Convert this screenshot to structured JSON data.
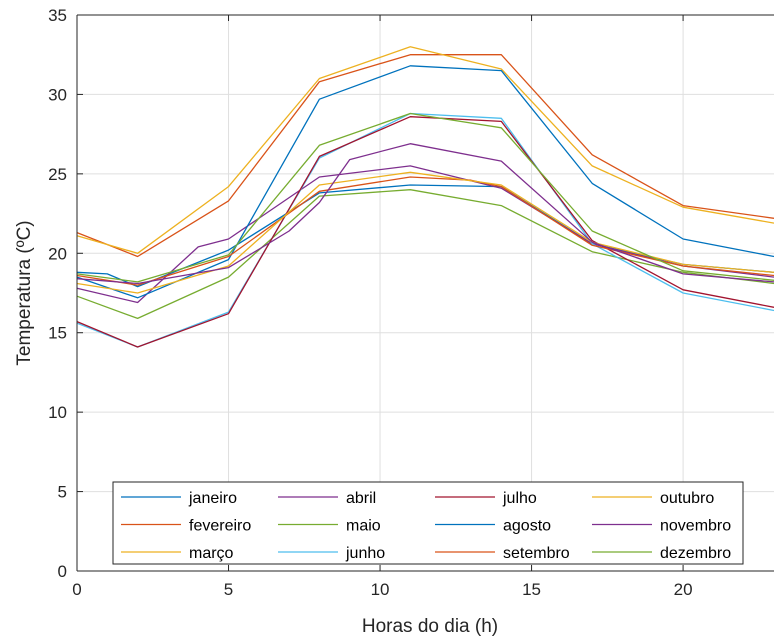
{
  "chart_data": {
    "type": "line",
    "title": "",
    "xlabel": "Horas do dia (h)",
    "ylabel": "Temperatura (ºC)",
    "xlim": [
      0,
      23
    ],
    "ylim": [
      0,
      35
    ],
    "xticks": [
      0,
      5,
      10,
      15,
      20
    ],
    "yticks": [
      0,
      5,
      10,
      15,
      20,
      25,
      30,
      35
    ],
    "grid": true,
    "legend_position": "bottom-inside",
    "legend_columns": 4,
    "series": [
      {
        "name": "janeiro",
        "color": "#0072BD",
        "x": [
          0,
          1,
          2,
          5,
          8,
          11,
          14,
          17,
          20,
          23
        ],
        "y": [
          18.8,
          18.7,
          17.9,
          20.2,
          23.8,
          24.3,
          24.2,
          20.6,
          19.3,
          18.8
        ]
      },
      {
        "name": "fevereiro",
        "color": "#D95319",
        "x": [
          0,
          2,
          5,
          8,
          11,
          14,
          17,
          20,
          23
        ],
        "y": [
          21.3,
          19.8,
          23.3,
          30.8,
          32.5,
          32.5,
          26.2,
          23.0,
          22.2
        ]
      },
      {
        "name": "março",
        "color": "#EDB120",
        "x": [
          0,
          2,
          5,
          8,
          11,
          14,
          17,
          20,
          23
        ],
        "y": [
          21.1,
          20.0,
          24.2,
          31.0,
          33.0,
          31.6,
          25.5,
          22.9,
          21.9
        ]
      },
      {
        "name": "abril",
        "color": "#7E2F8E",
        "x": [
          0,
          2,
          4,
          5,
          8,
          11,
          14,
          17,
          20,
          23
        ],
        "y": [
          17.8,
          16.9,
          20.4,
          20.9,
          24.8,
          25.5,
          24.1,
          20.6,
          19.2,
          18.5
        ]
      },
      {
        "name": "maio",
        "color": "#77AC30",
        "x": [
          0,
          2,
          5,
          8,
          11,
          14,
          17,
          20,
          23
        ],
        "y": [
          17.3,
          15.9,
          18.5,
          23.6,
          24.0,
          23.0,
          20.1,
          18.8,
          18.1
        ]
      },
      {
        "name": "junho",
        "color": "#4DBEEE",
        "x": [
          0,
          2,
          5,
          8,
          11,
          14,
          17,
          20,
          23
        ],
        "y": [
          15.6,
          14.1,
          16.3,
          26.0,
          28.8,
          28.5,
          20.6,
          17.5,
          16.4
        ]
      },
      {
        "name": "julho",
        "color": "#A2142F",
        "x": [
          0,
          2,
          5,
          8,
          11,
          14,
          17,
          20,
          23
        ],
        "y": [
          15.7,
          14.1,
          16.2,
          26.1,
          28.6,
          28.3,
          20.8,
          17.7,
          16.6
        ]
      },
      {
        "name": "agosto",
        "color": "#0072BD",
        "x": [
          0,
          2,
          5,
          8,
          11,
          14,
          17,
          20,
          23
        ],
        "y": [
          18.5,
          17.2,
          19.6,
          29.7,
          31.8,
          31.5,
          24.4,
          20.9,
          19.8
        ]
      },
      {
        "name": "setembro",
        "color": "#D95319",
        "x": [
          0,
          2,
          5,
          8,
          11,
          12,
          13,
          14,
          17,
          20,
          23
        ],
        "y": [
          18.6,
          18.0,
          19.8,
          23.9,
          24.8,
          24.7,
          24.6,
          24.2,
          20.5,
          19.2,
          18.6
        ]
      },
      {
        "name": "outubro",
        "color": "#EDB120",
        "x": [
          0,
          2,
          5,
          8,
          11,
          14,
          17,
          20,
          23
        ],
        "y": [
          18.1,
          17.5,
          19.2,
          24.3,
          25.1,
          24.3,
          20.7,
          19.3,
          18.8
        ]
      },
      {
        "name": "novembro",
        "color": "#7E2F8E",
        "x": [
          0,
          2,
          5,
          7,
          8,
          9,
          11,
          14,
          17,
          20,
          23
        ],
        "y": [
          18.4,
          18.1,
          19.1,
          21.4,
          23.2,
          25.9,
          26.9,
          25.8,
          20.7,
          18.7,
          18.2
        ]
      },
      {
        "name": "dezembro",
        "color": "#77AC30",
        "x": [
          0,
          2,
          5,
          8,
          11,
          14,
          17,
          20,
          23
        ],
        "y": [
          18.7,
          18.2,
          19.9,
          26.8,
          28.8,
          27.9,
          21.4,
          18.9,
          18.3
        ]
      }
    ]
  }
}
